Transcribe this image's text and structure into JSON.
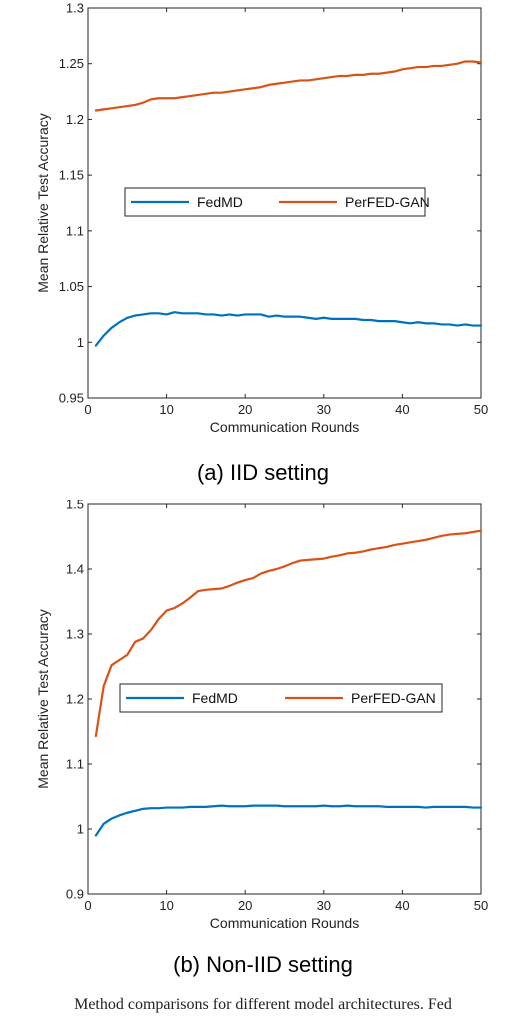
{
  "captions": {
    "a": "(a) IID setting",
    "b": "(b) Non-IID setting"
  },
  "figure_note": "Method comparisons for different model architectures. Fed",
  "colors": {
    "fedmd": "#0072BD",
    "perfed": "#D95319"
  },
  "chart_data": [
    {
      "type": "line",
      "xlabel": "Communication Rounds",
      "ylabel": "Mean Relative Test Accuracy",
      "xlim": [
        0,
        50
      ],
      "ylim": [
        0.95,
        1.3
      ],
      "xticks": [
        0,
        10,
        20,
        30,
        40,
        50
      ],
      "yticks": [
        0.95,
        1,
        1.05,
        1.1,
        1.15,
        1.2,
        1.25,
        1.3
      ],
      "ytick_labels": [
        "0.95",
        "1",
        "1.05",
        "1.1",
        "1.15",
        "1.2",
        "1.25",
        "1.3"
      ],
      "grid": false,
      "legend": "center",
      "x": [
        1,
        2,
        3,
        4,
        5,
        6,
        7,
        8,
        9,
        10,
        11,
        12,
        13,
        14,
        15,
        16,
        17,
        18,
        19,
        20,
        21,
        22,
        23,
        24,
        25,
        26,
        27,
        28,
        29,
        30,
        31,
        32,
        33,
        34,
        35,
        36,
        37,
        38,
        39,
        40,
        41,
        42,
        43,
        44,
        45,
        46,
        47,
        48,
        49,
        50
      ],
      "series": [
        {
          "name": "FedMD",
          "color": "#0072BD",
          "values": [
            0.997,
            1.006,
            1.013,
            1.018,
            1.022,
            1.024,
            1.025,
            1.026,
            1.026,
            1.025,
            1.027,
            1.026,
            1.026,
            1.026,
            1.025,
            1.025,
            1.024,
            1.025,
            1.024,
            1.025,
            1.025,
            1.025,
            1.023,
            1.024,
            1.023,
            1.023,
            1.023,
            1.022,
            1.021,
            1.022,
            1.021,
            1.021,
            1.021,
            1.021,
            1.02,
            1.02,
            1.019,
            1.019,
            1.019,
            1.018,
            1.017,
            1.018,
            1.017,
            1.017,
            1.016,
            1.016,
            1.015,
            1.016,
            1.015,
            1.015
          ]
        },
        {
          "name": "PerFED-GAN",
          "color": "#D95319",
          "values": [
            1.208,
            1.209,
            1.21,
            1.211,
            1.212,
            1.213,
            1.215,
            1.218,
            1.219,
            1.219,
            1.219,
            1.22,
            1.221,
            1.222,
            1.223,
            1.224,
            1.224,
            1.225,
            1.226,
            1.227,
            1.228,
            1.229,
            1.231,
            1.232,
            1.233,
            1.234,
            1.235,
            1.235,
            1.236,
            1.237,
            1.238,
            1.239,
            1.239,
            1.24,
            1.24,
            1.241,
            1.241,
            1.242,
            1.243,
            1.245,
            1.246,
            1.247,
            1.247,
            1.248,
            1.248,
            1.249,
            1.25,
            1.252,
            1.252,
            1.251
          ]
        }
      ]
    },
    {
      "type": "line",
      "xlabel": "Communication Rounds",
      "ylabel": "Mean Relative Test Accuracy",
      "xlim": [
        0,
        50
      ],
      "ylim": [
        0.9,
        1.5
      ],
      "xticks": [
        0,
        10,
        20,
        30,
        40,
        50
      ],
      "yticks": [
        0.9,
        1,
        1.1,
        1.2,
        1.3,
        1.4,
        1.5
      ],
      "ytick_labels": [
        "0.9",
        "1",
        "1.1",
        "1.2",
        "1.3",
        "1.4",
        "1.5"
      ],
      "grid": false,
      "legend": "center",
      "x": [
        1,
        2,
        3,
        4,
        5,
        6,
        7,
        8,
        9,
        10,
        11,
        12,
        13,
        14,
        15,
        16,
        17,
        18,
        19,
        20,
        21,
        22,
        23,
        24,
        25,
        26,
        27,
        28,
        29,
        30,
        31,
        32,
        33,
        34,
        35,
        36,
        37,
        38,
        39,
        40,
        41,
        42,
        43,
        44,
        45,
        46,
        47,
        48,
        49,
        50
      ],
      "series": [
        {
          "name": "FedMD",
          "color": "#0072BD",
          "values": [
            0.99,
            1.008,
            1.016,
            1.021,
            1.025,
            1.028,
            1.031,
            1.032,
            1.032,
            1.033,
            1.033,
            1.033,
            1.034,
            1.034,
            1.034,
            1.035,
            1.036,
            1.035,
            1.035,
            1.035,
            1.036,
            1.036,
            1.036,
            1.036,
            1.035,
            1.035,
            1.035,
            1.035,
            1.035,
            1.036,
            1.035,
            1.035,
            1.036,
            1.035,
            1.035,
            1.035,
            1.035,
            1.034,
            1.034,
            1.034,
            1.034,
            1.034,
            1.033,
            1.034,
            1.034,
            1.034,
            1.034,
            1.034,
            1.033,
            1.033
          ]
        },
        {
          "name": "PerFED-GAN",
          "color": "#D95319",
          "values": [
            1.143,
            1.22,
            1.252,
            1.26,
            1.268,
            1.288,
            1.293,
            1.306,
            1.323,
            1.336,
            1.34,
            1.347,
            1.356,
            1.366,
            1.368,
            1.369,
            1.37,
            1.374,
            1.379,
            1.383,
            1.386,
            1.393,
            1.397,
            1.4,
            1.404,
            1.409,
            1.413,
            1.414,
            1.415,
            1.416,
            1.419,
            1.421,
            1.424,
            1.425,
            1.427,
            1.43,
            1.432,
            1.434,
            1.437,
            1.439,
            1.441,
            1.443,
            1.445,
            1.448,
            1.451,
            1.453,
            1.454,
            1.455,
            1.457,
            1.459
          ]
        }
      ]
    }
  ]
}
